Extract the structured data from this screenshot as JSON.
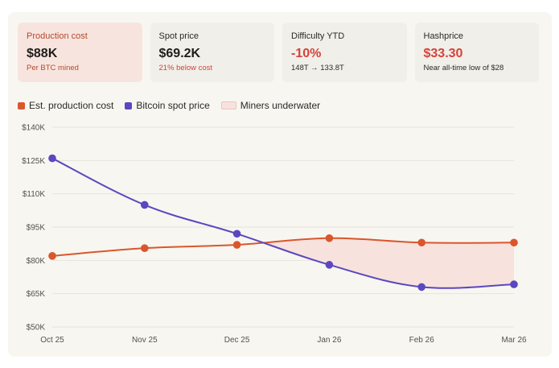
{
  "cards": [
    {
      "label": "Production cost",
      "value": "$88K",
      "sub": "Per BTC mined"
    },
    {
      "label": "Spot price",
      "value": "$69.2K",
      "sub": "21% below cost"
    },
    {
      "label": "Difficulty YTD",
      "value": "-10%",
      "sub": "148T → 133.8T"
    },
    {
      "label": "Hashprice",
      "value": "$33.30",
      "sub": "Near all-time low of $28"
    }
  ],
  "legend": {
    "cost": "Est. production cost",
    "spot": "Bitcoin spot price",
    "underwater": "Miners underwater"
  },
  "colors": {
    "cost": "#d9572c",
    "spot": "#5b47c0",
    "underwater_fill": "#f8e2de"
  },
  "chart_data": {
    "type": "line",
    "x": [
      "Oct 25",
      "Nov 25",
      "Dec 25",
      "Jan 26",
      "Feb 26",
      "Mar 26"
    ],
    "series": [
      {
        "name": "Est. production cost",
        "values": [
          82000,
          85500,
          87000,
          90000,
          88000,
          88000
        ]
      },
      {
        "name": "Bitcoin spot price",
        "values": [
          126000,
          105000,
          92000,
          78000,
          68000,
          69200
        ]
      }
    ],
    "ylim": [
      50000,
      140000
    ],
    "yticks": [
      50000,
      65000,
      80000,
      95000,
      110000,
      125000,
      140000
    ],
    "ytick_labels": [
      "$50K",
      "$65K",
      "$80K",
      "$95K",
      "$110K",
      "$125K",
      "$140K"
    ],
    "shaded_region": "Miners underwater",
    "grid": true,
    "legend_position": "top-left"
  }
}
